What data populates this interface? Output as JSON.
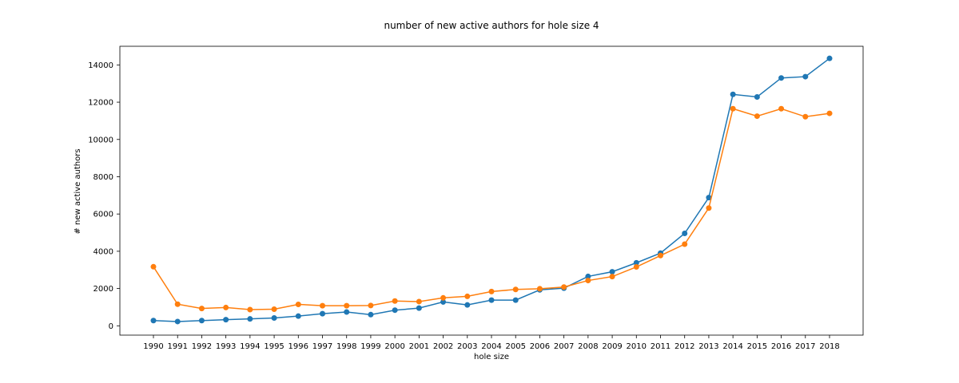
{
  "chart_data": {
    "type": "line",
    "title": "number of new active authors for hole size 4",
    "xlabel": "hole size",
    "ylabel": "# new active authors",
    "categories": [
      "1990",
      "1991",
      "1992",
      "1993",
      "1994",
      "1995",
      "1996",
      "1997",
      "1998",
      "1999",
      "2000",
      "2001",
      "2002",
      "2003",
      "2004",
      "2005",
      "2006",
      "2007",
      "2008",
      "2009",
      "2010",
      "2011",
      "2012",
      "2013",
      "2014",
      "2015",
      "2016",
      "2017",
      "2018"
    ],
    "ylim": [
      -500,
      15000
    ],
    "yticks": [
      0,
      2000,
      4000,
      6000,
      8000,
      10000,
      12000,
      14000
    ],
    "grid": false,
    "legend": "none",
    "series": [
      {
        "color": "#1f77b4",
        "values": [
          280,
          230,
          280,
          330,
          370,
          420,
          520,
          650,
          740,
          600,
          840,
          950,
          1280,
          1120,
          1380,
          1380,
          1930,
          2020,
          2650,
          2900,
          3380,
          3900,
          4960,
          6880,
          12420,
          12280,
          13300,
          13370,
          14350
        ]
      },
      {
        "color": "#ff7f0e",
        "values": [
          3170,
          1160,
          930,
          980,
          870,
          890,
          1150,
          1080,
          1080,
          1090,
          1330,
          1300,
          1500,
          1580,
          1840,
          1950,
          1990,
          2080,
          2430,
          2640,
          3160,
          3770,
          4380,
          6320,
          11650,
          11250,
          11650,
          11220,
          11400
        ]
      }
    ]
  }
}
